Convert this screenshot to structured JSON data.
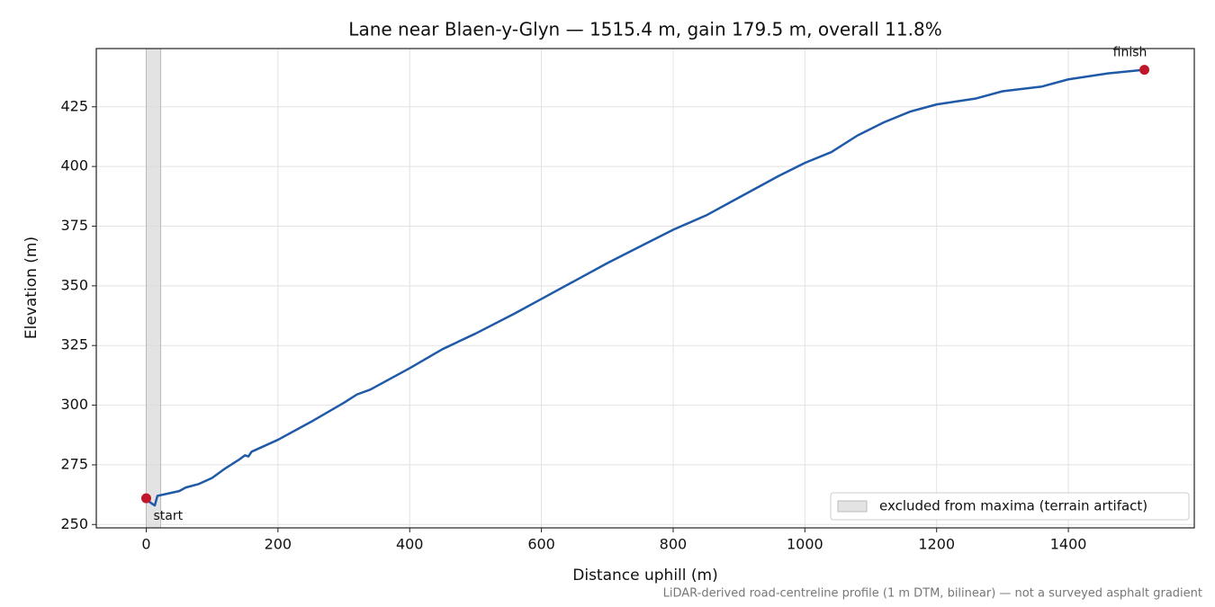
{
  "chart_data": {
    "type": "line",
    "title": "Lane near Blaen-y-Glyn — 1515.4 m, gain 179.5 m, overall 11.8%",
    "x_label": "Distance uphill (m)",
    "y_label": "Elevation (m)",
    "footnote": "LiDAR-derived road-centreline profile (1 m DTM, bilinear) — not a surveyed asphalt gradient",
    "x": [
      0,
      5,
      10,
      13,
      17,
      25,
      50,
      60,
      80,
      100,
      120,
      140,
      150,
      155,
      160,
      200,
      250,
      300,
      320,
      340,
      400,
      450,
      500,
      560,
      600,
      660,
      700,
      750,
      800,
      850,
      900,
      960,
      1000,
      1040,
      1080,
      1120,
      1160,
      1200,
      1260,
      1300,
      1360,
      1400,
      1460,
      1515.4
    ],
    "series": [
      {
        "color": "#1f5aa8",
        "values": [
          261,
          259.5,
          258.5,
          258,
          262,
          262.5,
          264,
          265.5,
          267,
          269.5,
          273.5,
          277,
          279,
          278.5,
          280.5,
          285.5,
          293,
          301,
          304.5,
          306.5,
          315.5,
          323.5,
          330,
          338.5,
          344.5,
          353.5,
          359.5,
          366.5,
          373.5,
          379.5,
          387,
          396,
          401.5,
          406,
          413,
          418.5,
          423,
          426,
          428.5,
          431.5,
          433.5,
          436.5,
          439,
          440.5
        ]
      }
    ],
    "markers": [
      {
        "label": "start",
        "x": 0,
        "y": 261,
        "color": "#c0182a"
      },
      {
        "label": "finish",
        "x": 1515.4,
        "y": 440.5,
        "color": "#c0182a"
      }
    ],
    "shaded_region": {
      "label": "excluded from maxima (terrain artifact)",
      "x": [
        0,
        22
      ],
      "color": "#d9d9d9"
    },
    "xlim": [
      -75.8,
      1591.2
    ],
    "ylim": [
      248.6,
      449.4
    ],
    "xticks": [
      0,
      200,
      400,
      600,
      800,
      1000,
      1200,
      1400
    ],
    "yticks": [
      250,
      275,
      300,
      325,
      350,
      375,
      400,
      425
    ],
    "grid": true,
    "legend": "lower right"
  }
}
